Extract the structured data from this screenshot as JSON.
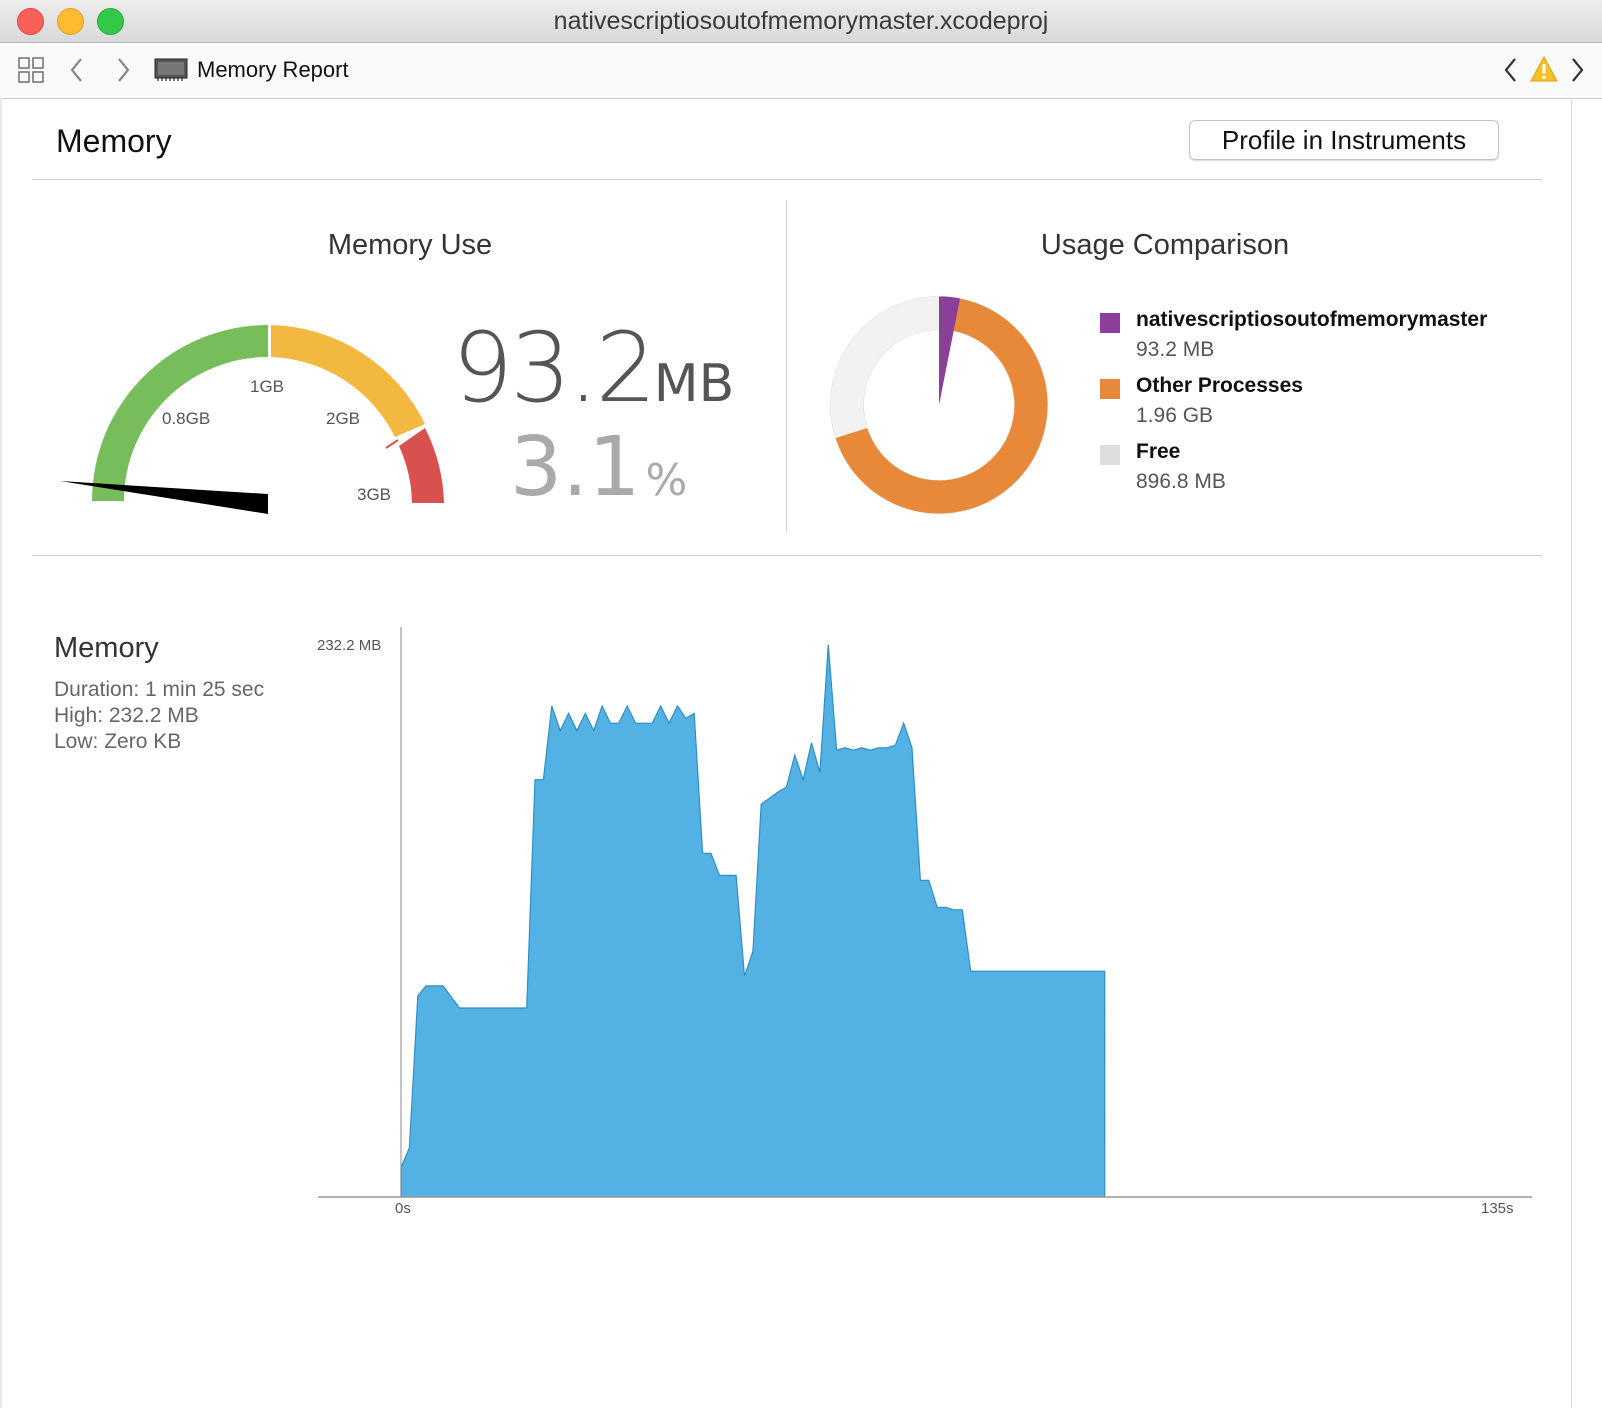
{
  "window": {
    "title": "nativescriptiosoutofmemorymaster.xcodeproj"
  },
  "toolbar": {
    "breadcrumb_label": "Memory Report",
    "icons": [
      "grid-icon",
      "back-arrow-icon",
      "forward-arrow-icon",
      "memory-chip-icon",
      "issue-prev-icon",
      "warning-icon",
      "issue-next-icon"
    ]
  },
  "header": {
    "title": "Memory",
    "profile_button": "Profile in Instruments"
  },
  "memory_use": {
    "title": "Memory Use",
    "value": "93.2",
    "unit": "MB",
    "percent_value": "3.1",
    "percent_unit": "%",
    "gauge_labels": [
      "0.8GB",
      "1GB",
      "2GB",
      "3GB"
    ],
    "gauge_colors": [
      "#78bd5c",
      "#f3b840",
      "#d9514e"
    ]
  },
  "usage_comparison": {
    "title": "Usage Comparison",
    "legend": [
      {
        "name": "nativescriptiosoutofmemorymaster",
        "value": "93.2 MB",
        "color": "#8b3f9a"
      },
      {
        "name": "Other Processes",
        "value": "1.96 GB",
        "color": "#e8893a"
      },
      {
        "name": "Free",
        "value": "896.8 MB",
        "color": "#dedede"
      }
    ]
  },
  "memory_graph": {
    "title": "Memory",
    "duration": "Duration: 1 min 25 sec",
    "high": "High: 232.2 MB",
    "low": "Low: Zero KB",
    "ymax_label": "232.2 MB",
    "x_start_label": "0s",
    "x_end_label": "135s",
    "fill_color": "#54b1e3"
  },
  "chart_data": [
    {
      "type": "pie",
      "title": "Usage Comparison",
      "categories": [
        "nativescriptiosoutofmemorymaster",
        "Other Processes",
        "Free"
      ],
      "values": [
        93.2,
        2007,
        896.8
      ],
      "units": "MB"
    },
    {
      "type": "area",
      "xlabel": "",
      "ylabel": "",
      "xlim": [
        0,
        135
      ],
      "ylim": [
        0,
        232.2
      ],
      "x": [
        0,
        1,
        2,
        3,
        5,
        7,
        9,
        15,
        16,
        17,
        18,
        19,
        20,
        21,
        22,
        23,
        24,
        25,
        26,
        27,
        28,
        29,
        30,
        31,
        32,
        33,
        34,
        35,
        36,
        37,
        38,
        40,
        41,
        42,
        43,
        45,
        46,
        47,
        48,
        49,
        50,
        51,
        52,
        53,
        54,
        55,
        56,
        57,
        58,
        59,
        60,
        61,
        62,
        63,
        64,
        65,
        66,
        67,
        68,
        69,
        70,
        71,
        72,
        74,
        76,
        77,
        78,
        80,
        81,
        84
      ],
      "y": [
        12,
        20,
        82,
        86,
        86,
        77,
        77,
        77,
        170,
        170,
        200,
        190,
        197,
        190,
        197,
        190,
        200,
        193,
        193,
        200,
        193,
        193,
        193,
        200,
        193,
        200,
        195,
        197,
        140,
        140,
        131,
        131,
        90,
        100,
        160,
        165,
        167,
        180,
        170,
        185,
        173,
        225,
        182,
        183,
        182,
        183,
        182,
        183,
        183,
        184,
        193,
        183,
        129,
        129,
        118,
        118,
        117,
        117,
        92,
        92,
        92,
        92,
        92,
        92,
        92,
        92,
        92,
        92,
        92,
        92
      ],
      "series": [
        {
          "values": "same as y"
        }
      ]
    }
  ]
}
